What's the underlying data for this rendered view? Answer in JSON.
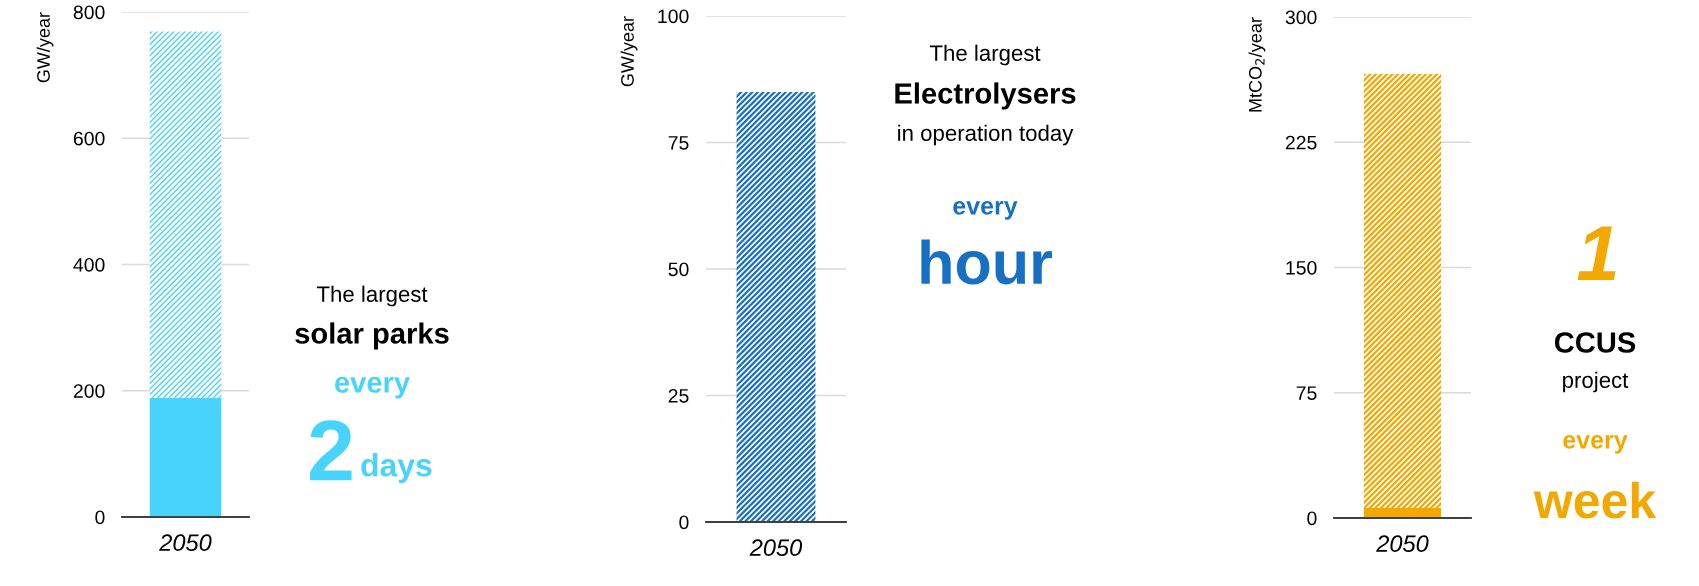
{
  "chart_data": [
    {
      "type": "bar",
      "stacked": true,
      "categories": [
        "2050"
      ],
      "ylabel": "GW/year",
      "ylim": [
        0,
        800
      ],
      "yticks": [
        0,
        200,
        400,
        600,
        800
      ],
      "grid": "y",
      "series": [
        {
          "color": "#48d3fc",
          "values": [
            189
          ]
        },
        {
          "color": "#48d3fc",
          "values": [
            580
          ]
        }
      ],
      "annotations": [
        "The largest",
        "solar parks",
        "every",
        "2",
        "days"
      ]
    },
    {
      "type": "bar",
      "categories": [
        "2050"
      ],
      "ylabel": "GW/year",
      "ylim": [
        0,
        100
      ],
      "yticks": [
        0,
        25,
        50,
        75,
        100
      ],
      "grid": "y",
      "series": [
        {
          "color": "#1870c4",
          "values": [
            85
          ]
        }
      ],
      "annotations": [
        "The largest",
        "Electrolysers",
        "in operation today",
        "every",
        "hour"
      ]
    },
    {
      "type": "bar",
      "stacked": true,
      "categories": [
        "2050"
      ],
      "ylabel": "MtCO$_{2}$/year",
      "ylim": [
        0,
        300
      ],
      "yticks": [
        0,
        75,
        150,
        225,
        300
      ],
      "grid": "y",
      "series": [
        {
          "color": "#f2a800",
          "values": [
            6
          ]
        },
        {
          "color": "#f2a800",
          "values": [
            260
          ]
        }
      ],
      "annotations": [
        "1",
        "CCUS",
        "project",
        "every",
        "week"
      ]
    }
  ]
}
